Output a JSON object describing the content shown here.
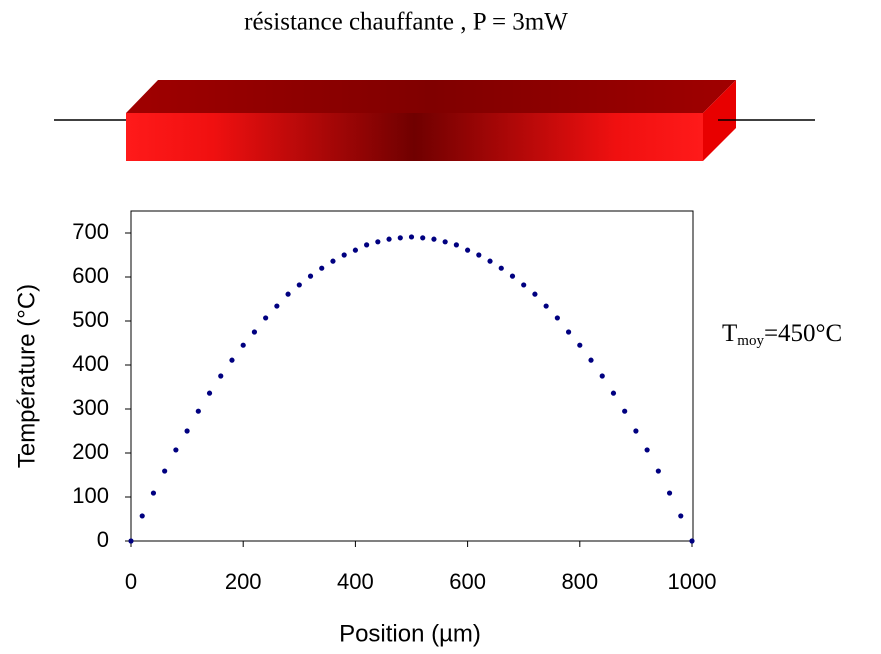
{
  "chart_data": {
    "type": "scatter",
    "title": "résistance chauffante , P = 3mW",
    "x_label": "Position (µm)",
    "y_label": "Température (°C)",
    "annotation": {
      "main": "T",
      "sub": "moy",
      "rest": "=450°C"
    },
    "x": [
      0,
      20,
      40,
      60,
      80,
      100,
      120,
      140,
      160,
      180,
      200,
      220,
      240,
      260,
      280,
      300,
      320,
      340,
      360,
      380,
      400,
      420,
      440,
      460,
      480,
      500,
      520,
      540,
      560,
      580,
      600,
      620,
      640,
      660,
      680,
      700,
      720,
      740,
      760,
      780,
      800,
      820,
      840,
      860,
      880,
      900,
      920,
      940,
      960,
      980,
      1000
    ],
    "series": [
      {
        "color": "#000080",
        "values": [
          0,
          57,
          109,
          159,
          207,
          250,
          295,
          336,
          375,
          411,
          445,
          475,
          507,
          534,
          561,
          582,
          602,
          620,
          636,
          650,
          661,
          673,
          680,
          686,
          689,
          691,
          689,
          686,
          680,
          673,
          661,
          650,
          636,
          620,
          602,
          582,
          561,
          534,
          507,
          475,
          445,
          411,
          375,
          336,
          295,
          250,
          207,
          159,
          109,
          57,
          0
        ]
      }
    ],
    "xlim": [
      0,
      1000
    ],
    "xticks": [
      0,
      200,
      400,
      600,
      800,
      1000
    ],
    "ylim": [
      0,
      750
    ],
    "yticks": [
      0,
      100,
      200,
      300,
      400,
      500,
      600,
      700
    ],
    "grid": false
  }
}
